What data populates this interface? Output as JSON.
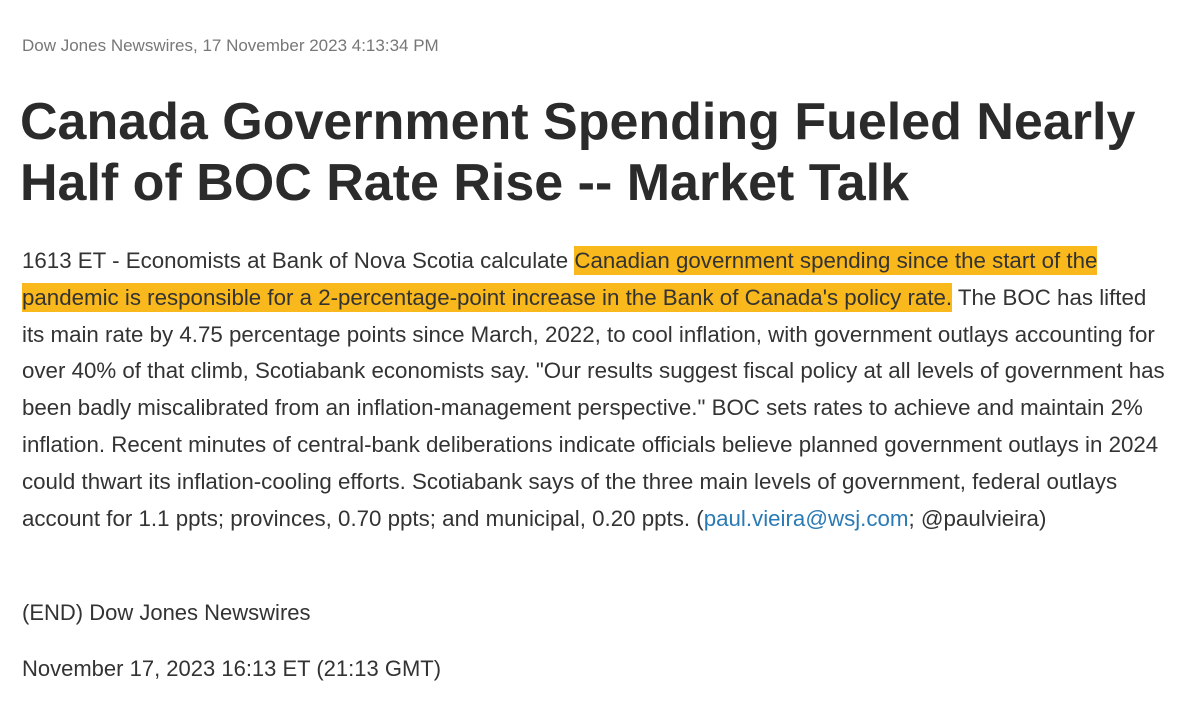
{
  "article": {
    "source_line": "Dow Jones Newswires, 17 November 2023 4:13:34 PM",
    "title": "Canada Government Spending Fueled Nearly Half of BOC Rate Rise -- Market Talk",
    "body": {
      "lead": "1613 ET - Economists at Bank of Nova Scotia calculate ",
      "highlight": "Canadian government spending since the start of the pandemic is responsible for a 2-percentage-point increase in the Bank of Canada's policy rate.",
      "text": " The BOC has lifted its main rate by 4.75 percentage points since March, 2022, to cool inflation, with government outlays accounting for over 40% of that climb, Scotiabank economists say. \"Our results suggest fiscal policy at all levels of government has been badly miscalibrated from an inflation-management perspective.\" BOC sets rates to achieve and maintain 2% inflation. Recent minutes of central-bank deliberations indicate officials believe planned government outlays in 2024 could thwart its inflation-cooling efforts. Scotiabank says of the three main levels of government, federal outlays account for 1.1 ppts; provinces, 0.70 ppts; and municipal, 0.20 ppts. (",
      "link": "paul.vieira@wsj.com",
      "tail": "; @paulvieira)"
    },
    "end_line": "(END) Dow Jones Newswires",
    "date_line": "November 17, 2023 16:13 ET (21:13 GMT)"
  }
}
